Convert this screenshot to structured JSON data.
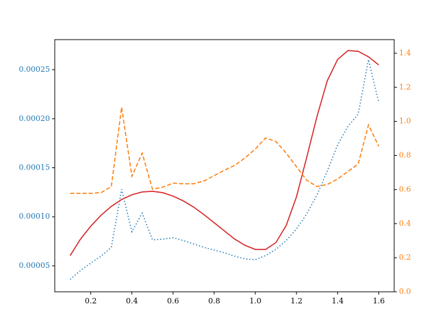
{
  "chart_data": {
    "type": "line",
    "x": [
      0.1,
      0.15,
      0.2,
      0.25,
      0.3,
      0.35,
      0.4,
      0.45,
      0.5,
      0.55,
      0.6,
      0.65,
      0.7,
      0.75,
      0.8,
      0.85,
      0.9,
      0.95,
      1.0,
      1.05,
      1.1,
      1.15,
      1.2,
      1.25,
      1.3,
      1.35,
      1.4,
      1.45,
      1.5,
      1.55,
      1.6
    ],
    "xlim": [
      0.025,
      1.675
    ],
    "xticks": [
      0.2,
      0.4,
      0.6,
      0.8,
      {
        "value": 1.0,
        "label": "1.0"
      },
      1.2,
      1.4,
      1.6
    ],
    "ylim": [
      2.35e-05,
      0.0002807
    ],
    "yticks": [
      5e-05,
      {
        "value": 0.0001,
        "label": "0.00010"
      },
      0.00015,
      {
        "value": 0.0002,
        "label": "0.00020"
      },
      0.00025
    ],
    "y2lim": [
      0,
      1.48
    ],
    "y2ticks": [
      {
        "value": 0,
        "label": "0.0"
      },
      0.2,
      0.4,
      0.6,
      0.8,
      {
        "value": 1.0,
        "label": "1.0"
      },
      1.2,
      1.4
    ],
    "series": [
      {
        "color": "#1f77b4",
        "linestyle": "dotted",
        "axis": "y",
        "values": [
          3.61e-05,
          4.51e-05,
          5.28e-05,
          5.98e-05,
          6.88e-05,
          0.000128,
          8.48e-05,
          0.0001037,
          7.65e-05,
          7.72e-05,
          7.86e-05,
          7.58e-05,
          7.23e-05,
          6.88e-05,
          6.6e-05,
          6.32e-05,
          5.98e-05,
          5.7e-05,
          5.63e-05,
          6.05e-05,
          6.67e-05,
          7.58e-05,
          8.76e-05,
          0.000103,
          0.0001225,
          0.0001469,
          0.0001733,
          0.0001922,
          0.0002047,
          0.0002604,
          0.0002165
        ]
      },
      {
        "color": "#d62728",
        "linestyle": "solid",
        "axis": "y",
        "values": [
          6.05e-05,
          7.72e-05,
          9.04e-05,
          0.0001016,
          0.0001106,
          0.0001176,
          0.0001225,
          0.0001253,
          0.000126,
          0.0001246,
          0.0001211,
          0.0001162,
          0.0001099,
          0.0001023,
          9.39e-05,
          8.55e-05,
          7.72e-05,
          7.09e-05,
          6.67e-05,
          6.67e-05,
          7.37e-05,
          9.11e-05,
          0.0001204,
          0.0001608,
          0.0002026,
          0.0002389,
          0.0002605,
          0.0002695,
          0.0002688,
          0.0002632,
          0.0002549
        ]
      },
      {
        "color": "#ff7f0e",
        "linestyle": "dashed",
        "axis": "y2",
        "values": [
          0.578,
          0.578,
          0.578,
          0.582,
          0.618,
          1.083,
          0.678,
          0.814,
          0.602,
          0.614,
          0.638,
          0.634,
          0.634,
          0.65,
          0.682,
          0.714,
          0.742,
          0.786,
          0.838,
          0.903,
          0.882,
          0.814,
          0.734,
          0.654,
          0.618,
          0.63,
          0.662,
          0.706,
          0.75,
          0.979,
          0.854
        ]
      }
    ]
  }
}
